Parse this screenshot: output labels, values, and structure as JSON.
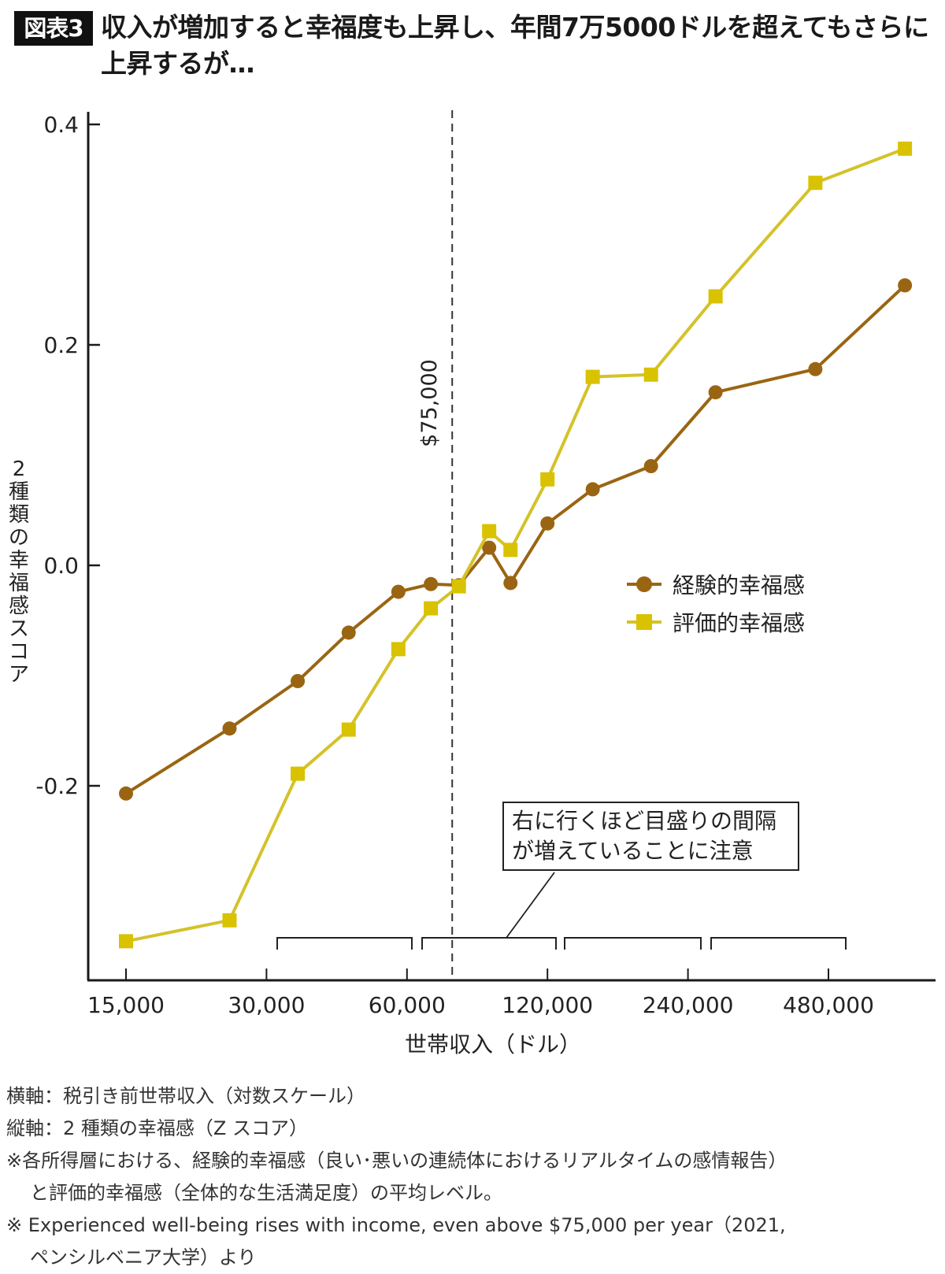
{
  "header": {
    "badge": "図表3",
    "title": "収入が増加すると幸福度も上昇し、年間7万5000ドルを超えてもさらに上昇するが…"
  },
  "colors": {
    "experienced": "#9a6512",
    "evaluative_marker": "#d9c200",
    "evaluative_line": "#d4c22a",
    "axis": "#1a1a1a",
    "badge_bg": "#111111"
  },
  "axes": {
    "y_label_chars": [
      "2",
      "種",
      "類",
      "の",
      "幸",
      "福",
      "感",
      "ス",
      "コ",
      "ア"
    ],
    "y_ticks": [
      "0.4",
      "0.2",
      "0.0",
      "-0.2"
    ],
    "x_ticks": [
      "15,000",
      "30,000",
      "60,000",
      "120,000",
      "240,000",
      "480,000"
    ],
    "x_label": "世帯収入（ドル）"
  },
  "reference_line": {
    "label": "$75,000"
  },
  "legend": {
    "items": [
      {
        "label": "経験的幸福感",
        "marker": "circle"
      },
      {
        "label": "評価的幸福感",
        "marker": "square"
      }
    ]
  },
  "annotation": {
    "line1": "右に行くほど目盛りの間隔",
    "line2": "が増えていることに注意"
  },
  "notes": {
    "line1": "横軸：税引き前世帯収入（対数スケール）",
    "line2": "縦軸：2 種類の幸福感（Z スコア）",
    "line3": "※各所得層における、経験的幸福感（良い･悪いの連続体におけるリアルタイムの感情報告）",
    "line4": "と評価的幸福感（全体的な生活満足度）の平均レベル。",
    "line5": "※ Experienced well-being rises with income, even above $75,000 per year（2021,",
    "line6": "ペンシルベニア大学）より"
  },
  "chart_data": {
    "type": "line",
    "title": "収入が増加すると幸福度も上昇し、年間7万5000ドルを超えてもさらに上昇するが…",
    "xlabel": "世帯収入（ドル）",
    "ylabel": "2種類の幸福感スコア",
    "x_scale": "log2",
    "x_tick_values": [
      15000,
      30000,
      60000,
      120000,
      240000,
      480000
    ],
    "ylim": [
      -0.37,
      0.42
    ],
    "y_tick_values": [
      0.4,
      0.2,
      0.0,
      -0.2
    ],
    "grid": false,
    "legend_position": "center-right",
    "reference_x": 75000,
    "x": [
      15000,
      25000,
      35000,
      45000,
      57500,
      67500,
      77500,
      90000,
      100000,
      120000,
      150000,
      200000,
      275000,
      450000,
      700000
    ],
    "series": [
      {
        "name": "経験的幸福感",
        "marker": "circle",
        "values": [
          -0.207,
          -0.148,
          -0.105,
          -0.061,
          -0.024,
          -0.017,
          -0.018,
          0.016,
          -0.016,
          0.038,
          0.069,
          0.09,
          0.157,
          0.178,
          0.254
        ]
      },
      {
        "name": "評価的幸福感",
        "marker": "square",
        "values": [
          -0.341,
          -0.322,
          -0.189,
          -0.149,
          -0.076,
          -0.039,
          -0.019,
          0.031,
          0.014,
          0.078,
          0.171,
          0.173,
          0.244,
          0.347,
          0.378
        ]
      }
    ],
    "annotations": [
      "$75,000",
      "右に行くほど目盛りの間隔が増えていることに注意"
    ]
  }
}
